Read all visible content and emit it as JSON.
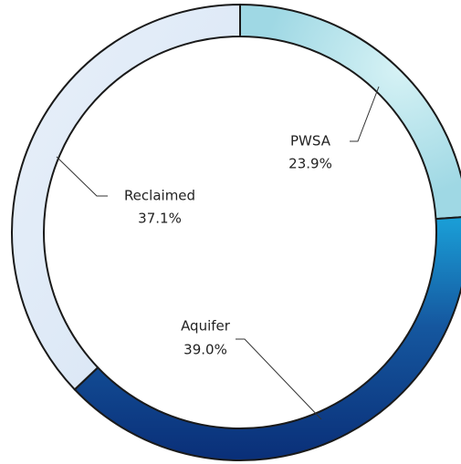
{
  "chart_data": {
    "type": "donut",
    "categories": [
      "PWSA",
      "Aquifer",
      "Reclaimed"
    ],
    "values": [
      23.9,
      39.0,
      37.1
    ],
    "value_labels": [
      "23.9%",
      "39.0%",
      "37.1%"
    ],
    "colors": [
      "#bde6ee",
      "#1657a8",
      "#e3edf8"
    ]
  }
}
